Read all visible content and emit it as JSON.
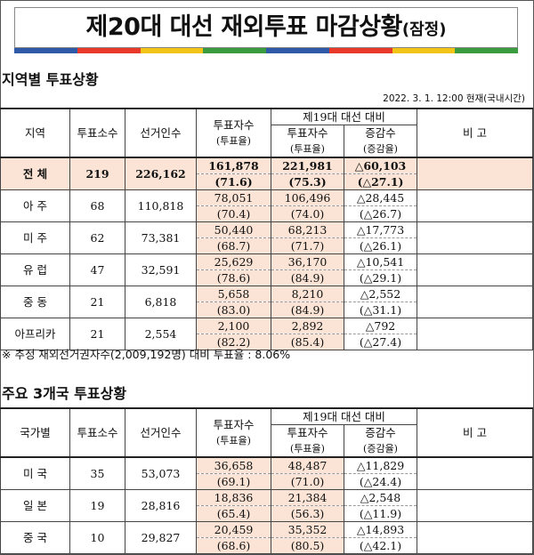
{
  "title": {
    "main": "제20대 대선 재외투표 마감상황",
    "sub": "(잠정)"
  },
  "colors": {
    "stripes": [
      "#2e5aa8",
      "#e8392a",
      "#f2c418",
      "#3b9b3f",
      "#2e5aa8",
      "#e8392a",
      "#f2c418",
      "#3b9b3f"
    ],
    "highlight": "#fbe4d5"
  },
  "region": {
    "heading": "지역별 투표상황",
    "date": "2022. 3. 1. 12:00 현재(국내시간)",
    "headers": {
      "col1": "지역",
      "col2": "투표소수",
      "col3": "선거인수",
      "col4a": "투표자수",
      "col4b": "(투표율)",
      "group": "제19대 대선 대비",
      "g1a": "투표자수",
      "g1b": "(투표율)",
      "g2a": "증감수",
      "g2b": "(증감율)",
      "note": "비 고"
    },
    "rows": [
      {
        "name": "전 체",
        "stations": "219",
        "electors": "226,162",
        "voters": "161,878",
        "rate": "(71.6)",
        "prev_voters": "221,981",
        "prev_rate": "(75.3)",
        "diff": "△60,103",
        "diff_rate": "(△27.1)"
      },
      {
        "name": "아 주",
        "stations": "68",
        "electors": "110,818",
        "voters": "78,051",
        "rate": "(70.4)",
        "prev_voters": "106,496",
        "prev_rate": "(74.0)",
        "diff": "△28,445",
        "diff_rate": "(△26.7)"
      },
      {
        "name": "미 주",
        "stations": "62",
        "electors": "73,381",
        "voters": "50,440",
        "rate": "(68.7)",
        "prev_voters": "68,213",
        "prev_rate": "(71.7)",
        "diff": "△17,773",
        "diff_rate": "(△26.1)"
      },
      {
        "name": "유 럽",
        "stations": "47",
        "electors": "32,591",
        "voters": "25,629",
        "rate": "(78.6)",
        "prev_voters": "36,170",
        "prev_rate": "(84.9)",
        "diff": "△10,541",
        "diff_rate": "(△29.1)"
      },
      {
        "name": "중 동",
        "stations": "21",
        "electors": "6,818",
        "voters": "5,658",
        "rate": "(83.0)",
        "prev_voters": "8,210",
        "prev_rate": "(84.9)",
        "diff": "△2,552",
        "diff_rate": "(△31.1)"
      },
      {
        "name": "아프리카",
        "stations": "21",
        "electors": "2,554",
        "voters": "2,100",
        "rate": "(82.2)",
        "prev_voters": "2,892",
        "prev_rate": "(85.4)",
        "diff": "△792",
        "diff_rate": "(△27.4)"
      }
    ]
  },
  "note": "※ 추정 재외선거권자수(2,009,192명) 대비 투표율 : 8.06%",
  "country": {
    "heading": "주요 3개국 투표상황",
    "headers": {
      "col1": "국가별",
      "col2": "투표소수",
      "col3": "선거인수",
      "col4a": "투표자수",
      "col4b": "(투표율)",
      "group": "제19대 대선 대비",
      "g1a": "투표자수",
      "g1b": "(투표율)",
      "g2a": "증감수",
      "g2b": "(증감율)",
      "note": "비 고"
    },
    "rows": [
      {
        "name": "미 국",
        "stations": "35",
        "electors": "53,073",
        "voters": "36,658",
        "rate": "(69.1)",
        "prev_voters": "48,487",
        "prev_rate": "(71.0)",
        "diff": "△11,829",
        "diff_rate": "(△24.4)"
      },
      {
        "name": "일 본",
        "stations": "19",
        "electors": "28,816",
        "voters": "18,836",
        "rate": "(65.4)",
        "prev_voters": "21,384",
        "prev_rate": "(56.3)",
        "diff": "△2,548",
        "diff_rate": "(△11.9)"
      },
      {
        "name": "중 국",
        "stations": "10",
        "electors": "29,827",
        "voters": "20,459",
        "rate": "(68.6)",
        "prev_voters": "35,352",
        "prev_rate": "(80.5)",
        "diff": "△14,893",
        "diff_rate": "(△42.1)"
      }
    ]
  }
}
